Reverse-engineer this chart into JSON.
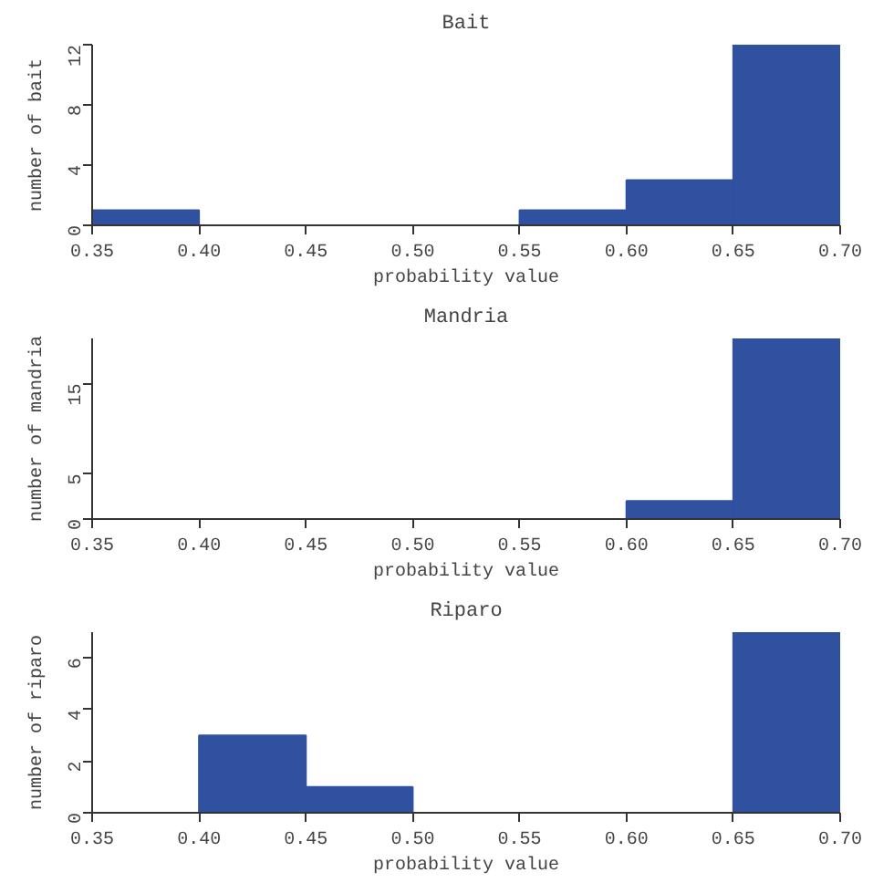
{
  "chart_data": [
    {
      "type": "histogram",
      "title": "Bait",
      "xlabel": "probability value",
      "ylabel": "number of bait",
      "bins": [
        0.35,
        0.4,
        0.45,
        0.5,
        0.55,
        0.6,
        0.65,
        0.7
      ],
      "values": [
        1,
        0,
        0,
        0,
        1,
        3,
        12
      ],
      "color": "#3050a0",
      "xlim": [
        0.35,
        0.7
      ],
      "xticks": [
        {
          "value": 0.35,
          "label": "0.35"
        },
        {
          "value": 0.4,
          "label": "0.40"
        },
        {
          "value": 0.45,
          "label": "0.45"
        },
        {
          "value": 0.5,
          "label": "0.50"
        },
        {
          "value": 0.55,
          "label": "0.55"
        },
        {
          "value": 0.6,
          "label": "0.60"
        },
        {
          "value": 0.65,
          "label": "0.65"
        },
        {
          "value": 0.7,
          "label": "0.70"
        }
      ],
      "ylim": [
        0,
        12
      ],
      "yticks": [
        0,
        4,
        8,
        12
      ]
    },
    {
      "type": "histogram",
      "title": "Mandria",
      "xlabel": "probability value",
      "ylabel": "number of mandria",
      "bins": [
        0.35,
        0.4,
        0.45,
        0.5,
        0.55,
        0.6,
        0.65,
        0.7
      ],
      "values": [
        0,
        0,
        0,
        0,
        0,
        2,
        20
      ],
      "color": "#3050a0",
      "xlim": [
        0.35,
        0.7
      ],
      "xticks": [
        {
          "value": 0.35,
          "label": "0.35"
        },
        {
          "value": 0.4,
          "label": "0.40"
        },
        {
          "value": 0.45,
          "label": "0.45"
        },
        {
          "value": 0.5,
          "label": "0.50"
        },
        {
          "value": 0.55,
          "label": "0.55"
        },
        {
          "value": 0.6,
          "label": "0.60"
        },
        {
          "value": 0.65,
          "label": "0.65"
        },
        {
          "value": 0.7,
          "label": "0.70"
        }
      ],
      "ylim": [
        0,
        20
      ],
      "yticks": [
        0,
        5,
        15
      ]
    },
    {
      "type": "histogram",
      "title": "Riparo",
      "xlabel": "probability value",
      "ylabel": "number of riparo",
      "bins": [
        0.35,
        0.4,
        0.45,
        0.5,
        0.55,
        0.6,
        0.65,
        0.7
      ],
      "values": [
        0,
        3,
        1,
        0,
        0,
        0,
        7
      ],
      "color": "#3050a0",
      "xlim": [
        0.35,
        0.7
      ],
      "xticks": [
        {
          "value": 0.35,
          "label": "0.35"
        },
        {
          "value": 0.4,
          "label": "0.40"
        },
        {
          "value": 0.45,
          "label": "0.45"
        },
        {
          "value": 0.5,
          "label": "0.50"
        },
        {
          "value": 0.55,
          "label": "0.55"
        },
        {
          "value": 0.6,
          "label": "0.60"
        },
        {
          "value": 0.65,
          "label": "0.65"
        },
        {
          "value": 0.7,
          "label": "0.70"
        }
      ],
      "ylim": [
        0,
        7
      ],
      "yticks": [
        0,
        2,
        4,
        6
      ]
    }
  ]
}
